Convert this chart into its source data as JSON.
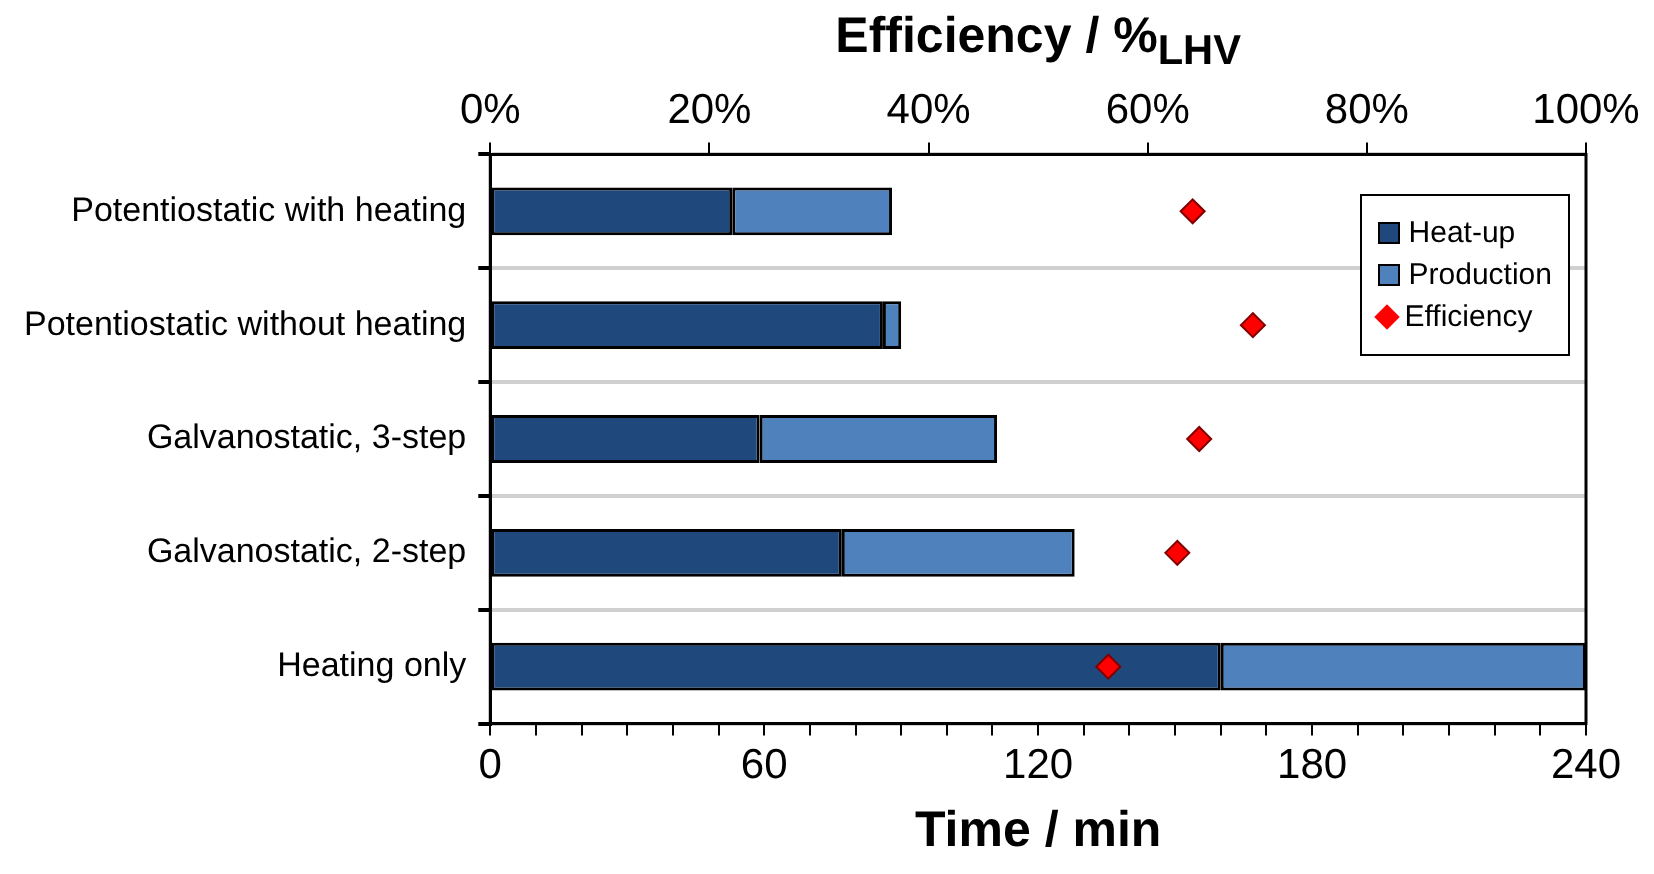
{
  "chart_data": {
    "type": "bar",
    "orientation": "horizontal",
    "stacked": true,
    "xlabel": "Time / min",
    "x2label": "Efficiency / %$_{LHV}$",
    "categories": [
      "Potentiostatic with heating",
      "Potentiostatic without heating",
      "Galvanostatic, 3-step",
      "Galvanostatic, 2-step",
      "Heating only"
    ],
    "xlim": [
      0,
      240
    ],
    "xticks": [
      0,
      {
        "value": 10,
        "label": null
      },
      {
        "value": 20,
        "label": null
      },
      {
        "value": 30,
        "label": null
      },
      {
        "value": 40,
        "label": null
      },
      {
        "value": 50,
        "label": null
      },
      60,
      {
        "value": 70,
        "label": null
      },
      {
        "value": 80,
        "label": null
      },
      {
        "value": 90,
        "label": null
      },
      {
        "value": 100,
        "label": null
      },
      {
        "value": 110,
        "label": null
      },
      120,
      {
        "value": 130,
        "label": null
      },
      {
        "value": 140,
        "label": null
      },
      {
        "value": 150,
        "label": null
      },
      {
        "value": 160,
        "label": null
      },
      {
        "value": 170,
        "label": null
      },
      180,
      {
        "value": 190,
        "label": null
      },
      {
        "value": 200,
        "label": null
      },
      {
        "value": 210,
        "label": null
      },
      {
        "value": 220,
        "label": null
      },
      {
        "value": 230,
        "label": null
      },
      240
    ],
    "x2lim": [
      0,
      100
    ],
    "x2ticks": [
      {
        "value": 0,
        "label": "0%"
      },
      {
        "value": 20,
        "label": "20%"
      },
      {
        "value": 40,
        "label": "40%"
      },
      {
        "value": 60,
        "label": "60%"
      },
      {
        "value": 80,
        "label": "80%"
      },
      {
        "value": 100,
        "label": "100%"
      }
    ],
    "series": [
      {
        "name": "Heat-up",
        "color": "#1f497d",
        "values": [
          53,
          86,
          59,
          77,
          160
        ]
      },
      {
        "name": "Production",
        "color": "#4f81bd",
        "values": [
          35,
          4,
          52,
          51,
          80
        ]
      },
      {
        "name": "Efficiency",
        "type": "scatter",
        "axis": "x2",
        "color": "#ff0000",
        "values": [
          64.1,
          69.6,
          64.7,
          62.7,
          56.4
        ]
      }
    ],
    "marker": "diamond",
    "grid": "y",
    "legend": "top right"
  }
}
